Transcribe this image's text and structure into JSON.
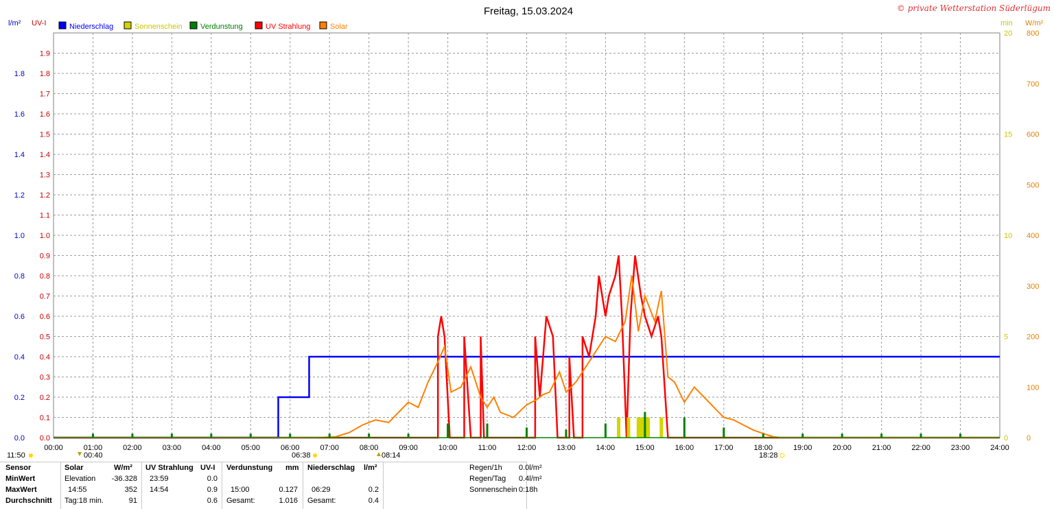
{
  "title": "Freitag, 15.03.2024",
  "copyright": "© private Wetterstation Süderlügum",
  "axis_units": {
    "left_outer": "l/m²",
    "left_inner": "UV-I",
    "right_inner": "min",
    "right_outer": "W/m²"
  },
  "legend": [
    {
      "label": "Niederschlag",
      "color": "#0000ff"
    },
    {
      "label": "Sonnenschein",
      "color": "#d4d400"
    },
    {
      "label": "Verdunstung",
      "color": "#008000"
    },
    {
      "label": "UV Strahlung",
      "color": "#ff0000"
    },
    {
      "label": "Solar",
      "color": "#ff8000"
    }
  ],
  "colors": {
    "precip": "#0000ff",
    "sun": "#d4d400",
    "evap": "#008000",
    "uv": "#ff0000",
    "solar": "#ff8000",
    "precip_axis": "#0000cc",
    "uv_axis": "#cc0000",
    "min_axis": "#c8c800",
    "solar_axis": "#e08000"
  },
  "sun_times": {
    "left": "11:50",
    "rise_twilight": "00:40",
    "rise": "06:38",
    "high": "08:14",
    "set": "18:28"
  },
  "chart_data": {
    "type": "line",
    "title": "Freitag, 15.03.2024",
    "x_ticks": [
      "00:00",
      "01:00",
      "02:00",
      "03:00",
      "04:00",
      "05:00",
      "06:00",
      "07:00",
      "08:00",
      "09:00",
      "10:00",
      "11:00",
      "12:00",
      "13:00",
      "14:00",
      "15:00",
      "16:00",
      "17:00",
      "18:00",
      "19:00",
      "20:00",
      "21:00",
      "22:00",
      "23:00",
      "24:00"
    ],
    "xlim_hours": [
      0,
      24
    ],
    "grid": true,
    "legend_position": "top-left",
    "axes": {
      "precip": {
        "label": "l/m²",
        "ylim": [
          0,
          2.0
        ],
        "ticks": [
          "0.0",
          "0.2",
          "0.4",
          "0.6",
          "0.8",
          "1.0",
          "1.2",
          "1.4",
          "1.6",
          "1.8"
        ]
      },
      "uv": {
        "label": "UV-I",
        "ylim": [
          0,
          2.0
        ],
        "ticks": [
          "0.0",
          "0.1",
          "0.2",
          "0.3",
          "0.4",
          "0.5",
          "0.6",
          "0.7",
          "0.8",
          "0.9",
          "1.0",
          "1.1",
          "1.2",
          "1.3",
          "1.4",
          "1.5",
          "1.6",
          "1.7",
          "1.8",
          "1.9"
        ]
      },
      "sun_min": {
        "label": "min",
        "ylim": [
          0,
          20
        ],
        "ticks": [
          "0",
          "5",
          "10",
          "15",
          "20"
        ]
      },
      "solar": {
        "label": "W/m²",
        "ylim": [
          0,
          800
        ],
        "ticks": [
          "0",
          "100",
          "200",
          "300",
          "400",
          "500",
          "600",
          "700",
          "800"
        ]
      }
    },
    "series": [
      {
        "name": "Niederschlag",
        "axis": "precip",
        "kind": "step",
        "points": [
          [
            "00:00",
            0.0
          ],
          [
            "05:42",
            0.0
          ],
          [
            "05:42",
            0.2
          ],
          [
            "06:29",
            0.2
          ],
          [
            "06:29",
            0.4
          ],
          [
            "24:00",
            0.4
          ]
        ]
      },
      {
        "name": "UV Strahlung",
        "axis": "uv",
        "kind": "step",
        "points": [
          [
            "00:00",
            0.0
          ],
          [
            "09:45",
            0.0
          ],
          [
            "09:45",
            0.5
          ],
          [
            "09:50",
            0.6
          ],
          [
            "09:55",
            0.5
          ],
          [
            "10:03",
            0.0
          ],
          [
            "10:25",
            0.0
          ],
          [
            "10:25",
            0.5
          ],
          [
            "10:35",
            0.0
          ],
          [
            "10:50",
            0.0
          ],
          [
            "10:50",
            0.5
          ],
          [
            "10:55",
            0.0
          ],
          [
            "12:13",
            0.0
          ],
          [
            "12:13",
            0.5
          ],
          [
            "12:20",
            0.2
          ],
          [
            "12:30",
            0.6
          ],
          [
            "12:40",
            0.5
          ],
          [
            "12:47",
            0.0
          ],
          [
            "13:05",
            0.0
          ],
          [
            "13:05",
            0.4
          ],
          [
            "13:12",
            0.0
          ],
          [
            "13:25",
            0.0
          ],
          [
            "13:25",
            0.5
          ],
          [
            "13:35",
            0.4
          ],
          [
            "13:45",
            0.6
          ],
          [
            "13:50",
            0.8
          ],
          [
            "14:00",
            0.6
          ],
          [
            "14:05",
            0.7
          ],
          [
            "14:15",
            0.8
          ],
          [
            "14:20",
            0.9
          ],
          [
            "14:25",
            0.6
          ],
          [
            "14:32",
            0.0
          ],
          [
            "14:38",
            0.6
          ],
          [
            "14:45",
            0.9
          ],
          [
            "14:54",
            0.7
          ],
          [
            "15:00",
            0.6
          ],
          [
            "15:10",
            0.5
          ],
          [
            "15:20",
            0.6
          ],
          [
            "15:25",
            0.5
          ],
          [
            "15:35",
            0.0
          ],
          [
            "24:00",
            0.0
          ]
        ]
      },
      {
        "name": "Solar",
        "axis": "solar",
        "kind": "line",
        "points": [
          [
            "00:00",
            0
          ],
          [
            "06:40",
            0
          ],
          [
            "07:10",
            2
          ],
          [
            "07:30",
            10
          ],
          [
            "07:50",
            25
          ],
          [
            "08:10",
            35
          ],
          [
            "08:30",
            30
          ],
          [
            "08:45",
            50
          ],
          [
            "09:00",
            70
          ],
          [
            "09:15",
            60
          ],
          [
            "09:30",
            110
          ],
          [
            "09:45",
            150
          ],
          [
            "09:55",
            180
          ],
          [
            "10:05",
            90
          ],
          [
            "10:20",
            100
          ],
          [
            "10:35",
            140
          ],
          [
            "10:50",
            80
          ],
          [
            "11:00",
            60
          ],
          [
            "11:10",
            80
          ],
          [
            "11:20",
            50
          ],
          [
            "11:40",
            40
          ],
          [
            "12:00",
            65
          ],
          [
            "12:15",
            75
          ],
          [
            "12:25",
            85
          ],
          [
            "12:35",
            90
          ],
          [
            "12:50",
            130
          ],
          [
            "13:00",
            90
          ],
          [
            "13:15",
            110
          ],
          [
            "13:30",
            140
          ],
          [
            "13:45",
            170
          ],
          [
            "14:00",
            200
          ],
          [
            "14:15",
            190
          ],
          [
            "14:30",
            230
          ],
          [
            "14:40",
            320
          ],
          [
            "14:50",
            210
          ],
          [
            "15:00",
            280
          ],
          [
            "15:15",
            230
          ],
          [
            "15:25",
            290
          ],
          [
            "15:35",
            120
          ],
          [
            "15:45",
            110
          ],
          [
            "16:00",
            70
          ],
          [
            "16:15",
            100
          ],
          [
            "16:30",
            80
          ],
          [
            "16:45",
            60
          ],
          [
            "17:00",
            40
          ],
          [
            "17:15",
            35
          ],
          [
            "17:30",
            25
          ],
          [
            "17:45",
            15
          ],
          [
            "18:00",
            8
          ],
          [
            "18:15",
            2
          ],
          [
            "18:28",
            0
          ],
          [
            "24:00",
            0
          ]
        ]
      },
      {
        "name": "Sonnenschein",
        "axis": "sun_min",
        "kind": "bar",
        "points": [
          [
            "14:20",
            1.0
          ],
          [
            "14:35",
            1.0
          ],
          [
            "14:50",
            1.0
          ],
          [
            "14:55",
            1.0
          ],
          [
            "15:00",
            1.0
          ],
          [
            "15:05",
            1.0
          ],
          [
            "15:25",
            1.0
          ]
        ]
      },
      {
        "name": "Verdunstung",
        "axis": "precip",
        "kind": "bar",
        "points": [
          [
            "01:00",
            0.02
          ],
          [
            "02:00",
            0.02
          ],
          [
            "03:00",
            0.02
          ],
          [
            "04:00",
            0.02
          ],
          [
            "05:00",
            0.02
          ],
          [
            "06:00",
            0.02
          ],
          [
            "07:00",
            0.02
          ],
          [
            "08:00",
            0.02
          ],
          [
            "09:00",
            0.02
          ],
          [
            "10:00",
            0.07
          ],
          [
            "11:00",
            0.07
          ],
          [
            "12:00",
            0.05
          ],
          [
            "13:00",
            0.04
          ],
          [
            "14:00",
            0.07
          ],
          [
            "15:00",
            0.127
          ],
          [
            "16:00",
            0.1
          ],
          [
            "17:00",
            0.05
          ],
          [
            "18:00",
            0.02
          ],
          [
            "19:00",
            0.02
          ],
          [
            "20:00",
            0.02
          ],
          [
            "21:00",
            0.02
          ],
          [
            "22:00",
            0.02
          ],
          [
            "23:00",
            0.02
          ]
        ]
      }
    ]
  },
  "stats": {
    "headers": {
      "sensor": "Sensor",
      "minwert": "MinWert",
      "maxwert": "MaxWert",
      "durchschnitt": "Durchschnitt"
    },
    "solar": {
      "name": "Solar",
      "unit": "W/m²",
      "min_label": "Elevation",
      "min_value": "-36.328",
      "max_time": "14:55",
      "max_value": "352",
      "avg_label": "Tag:18 min.",
      "avg_value": "91"
    },
    "uv": {
      "name": "UV Strahlung",
      "unit": "UV-I",
      "min_time": "23:59",
      "min_value": "0.0",
      "max_time": "14:54",
      "max_value": "0.9",
      "avg_value": "0.6"
    },
    "evap": {
      "name": "Verdunstung",
      "unit": "mm",
      "max_time": "15:00",
      "max_value": "0.127",
      "total_label": "Gesamt:",
      "total_value": "1.016"
    },
    "precip": {
      "name": "Niederschlag",
      "unit": "l/m²",
      "max_time": "06:29",
      "max_value": "0.2",
      "total_label": "Gesamt:",
      "total_value": "0.4"
    },
    "summary": {
      "rain1h_label": "Regen/1h",
      "rain1h_value": "0.0l/m²",
      "rainday_label": "Regen/Tag",
      "rainday_value": "0.4l/m²",
      "sun_label": "Sonnenschein",
      "sun_value": "0:18h"
    }
  }
}
